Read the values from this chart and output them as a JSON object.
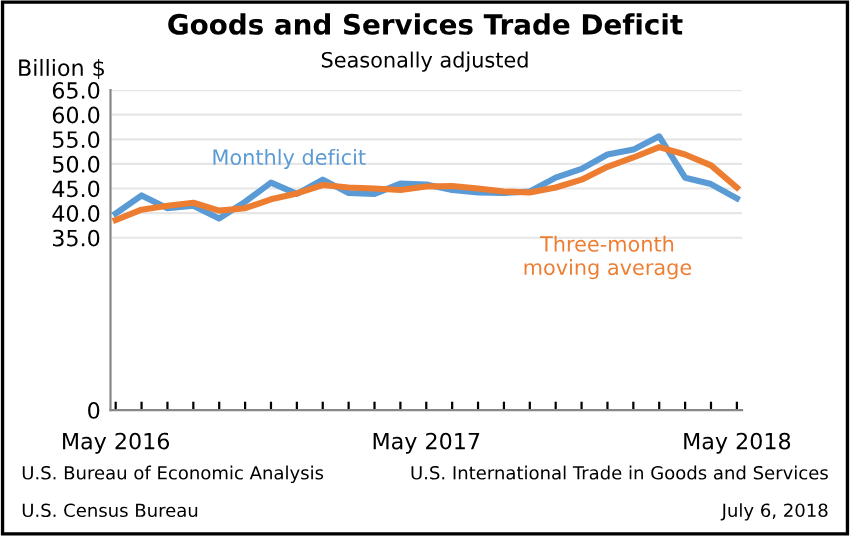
{
  "chart_data": {
    "type": "line",
    "title": "Goods and Services Trade Deficit",
    "subtitle": "Seasonally adjusted",
    "ylabel": "Billion $",
    "categories": [
      "May 2016",
      null,
      null,
      null,
      null,
      null,
      null,
      null,
      null,
      null,
      null,
      null,
      "May 2017",
      null,
      null,
      null,
      null,
      null,
      null,
      null,
      null,
      null,
      null,
      null,
      "May 2018"
    ],
    "series": [
      {
        "name": "Monthly deficit",
        "color": "#5b9bd5",
        "values": [
          39.9,
          43.6,
          41.0,
          41.5,
          38.9,
          42.3,
          46.2,
          43.9,
          46.8,
          44.1,
          43.9,
          46.0,
          45.8,
          44.7,
          44.2,
          44.1,
          44.4,
          47.2,
          49.0,
          51.9,
          52.9,
          55.6,
          47.2,
          45.9,
          43.0
        ]
      },
      {
        "name": "Three-month moving average",
        "color": "#ed7d31",
        "values": [
          38.6,
          40.7,
          41.5,
          42.1,
          40.5,
          41.0,
          42.8,
          44.0,
          45.7,
          45.2,
          45.0,
          44.7,
          45.4,
          45.5,
          45.0,
          44.4,
          44.2,
          45.2,
          46.8,
          49.4,
          51.3,
          53.4,
          51.9,
          49.7,
          45.2
        ]
      }
    ],
    "ylim": [
      0,
      65
    ],
    "yticks": [
      0,
      {
        "value": 35,
        "label": "35.0"
      },
      {
        "value": 40,
        "label": "40.0"
      },
      {
        "value": 45,
        "label": "45.0"
      },
      {
        "value": 50,
        "label": "50.0"
      },
      {
        "value": 55,
        "label": "55.0"
      },
      {
        "value": 60,
        "label": "60.0"
      },
      {
        "value": 65,
        "label": "65.0"
      }
    ],
    "grid": "y",
    "annotations": [
      "U.S. Bureau of Economic Analysis",
      "U.S. Census Bureau",
      "U.S. International Trade in Goods and Services",
      "July 6, 2018"
    ]
  }
}
